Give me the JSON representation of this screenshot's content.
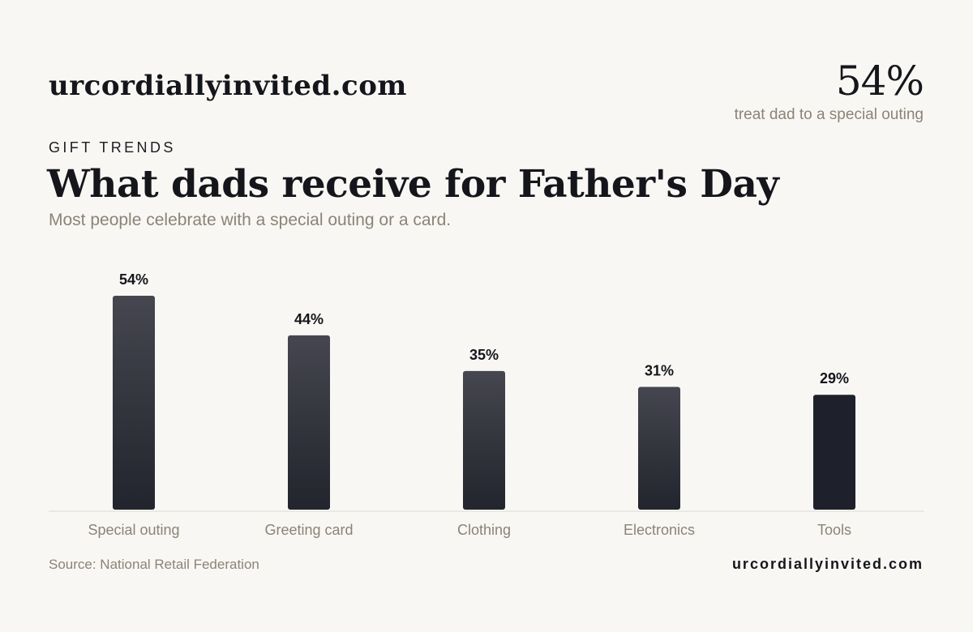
{
  "header": {
    "brand": "urcordiallyinvited.com",
    "stat_value": "54%",
    "stat_caption": "treat dad to a special outing",
    "eyebrow": "GIFT TRENDS",
    "title": "What dads receive for Father's Day",
    "subtitle": "Most people celebrate with a special outing or a card."
  },
  "footer": {
    "source": "Source: National Retail Federation",
    "brand": "urcordiallyinvited.com"
  },
  "colors": {
    "background": "#f8f7f3",
    "bar_top": "#45464f",
    "bar_bottom": "#22252d",
    "bar_highlight": "#1e212b",
    "axis_line": "#dcdad4",
    "muted_text": "#8c8378",
    "dark_text": "#15161c"
  },
  "chart_data": {
    "type": "bar",
    "categories": [
      "Special outing",
      "Greeting card",
      "Clothing",
      "Electronics",
      "Tools"
    ],
    "values": [
      54,
      44,
      35,
      31,
      29
    ],
    "value_labels": [
      "54%",
      "44%",
      "35%",
      "31%",
      "29%"
    ],
    "ylim": [
      0,
      54
    ],
    "grid": false,
    "legend": "none"
  }
}
